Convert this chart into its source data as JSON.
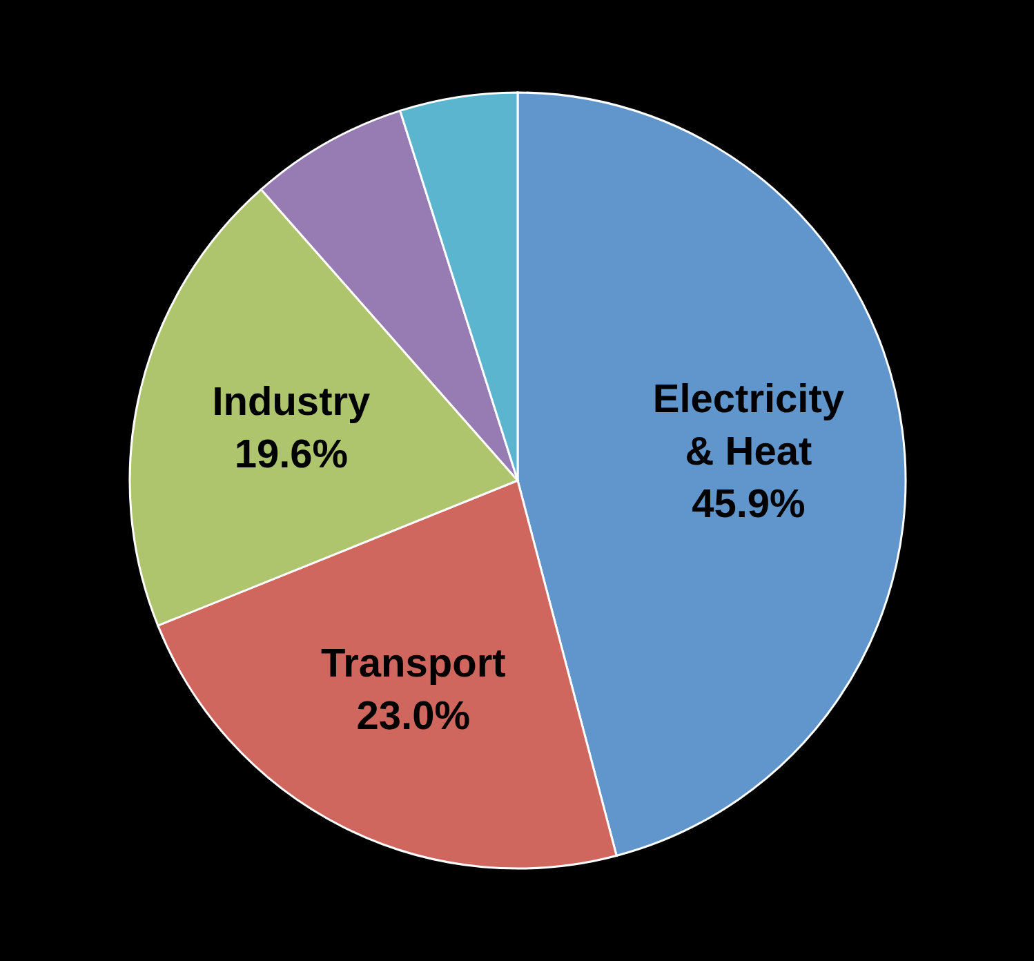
{
  "chart_data": {
    "type": "pie",
    "categories": [
      "Electricity & Heat",
      "Transport",
      "Industry",
      null,
      null
    ],
    "values": [
      45.9,
      23.0,
      19.6,
      6.6,
      4.9
    ],
    "colors": [
      "#6096cb",
      "#d0675f",
      "#aec56d",
      "#977cb4",
      "#5bb5cf"
    ],
    "value_labels": [
      "45.9%",
      "23.0%",
      "19.6%",
      null,
      null
    ]
  }
}
